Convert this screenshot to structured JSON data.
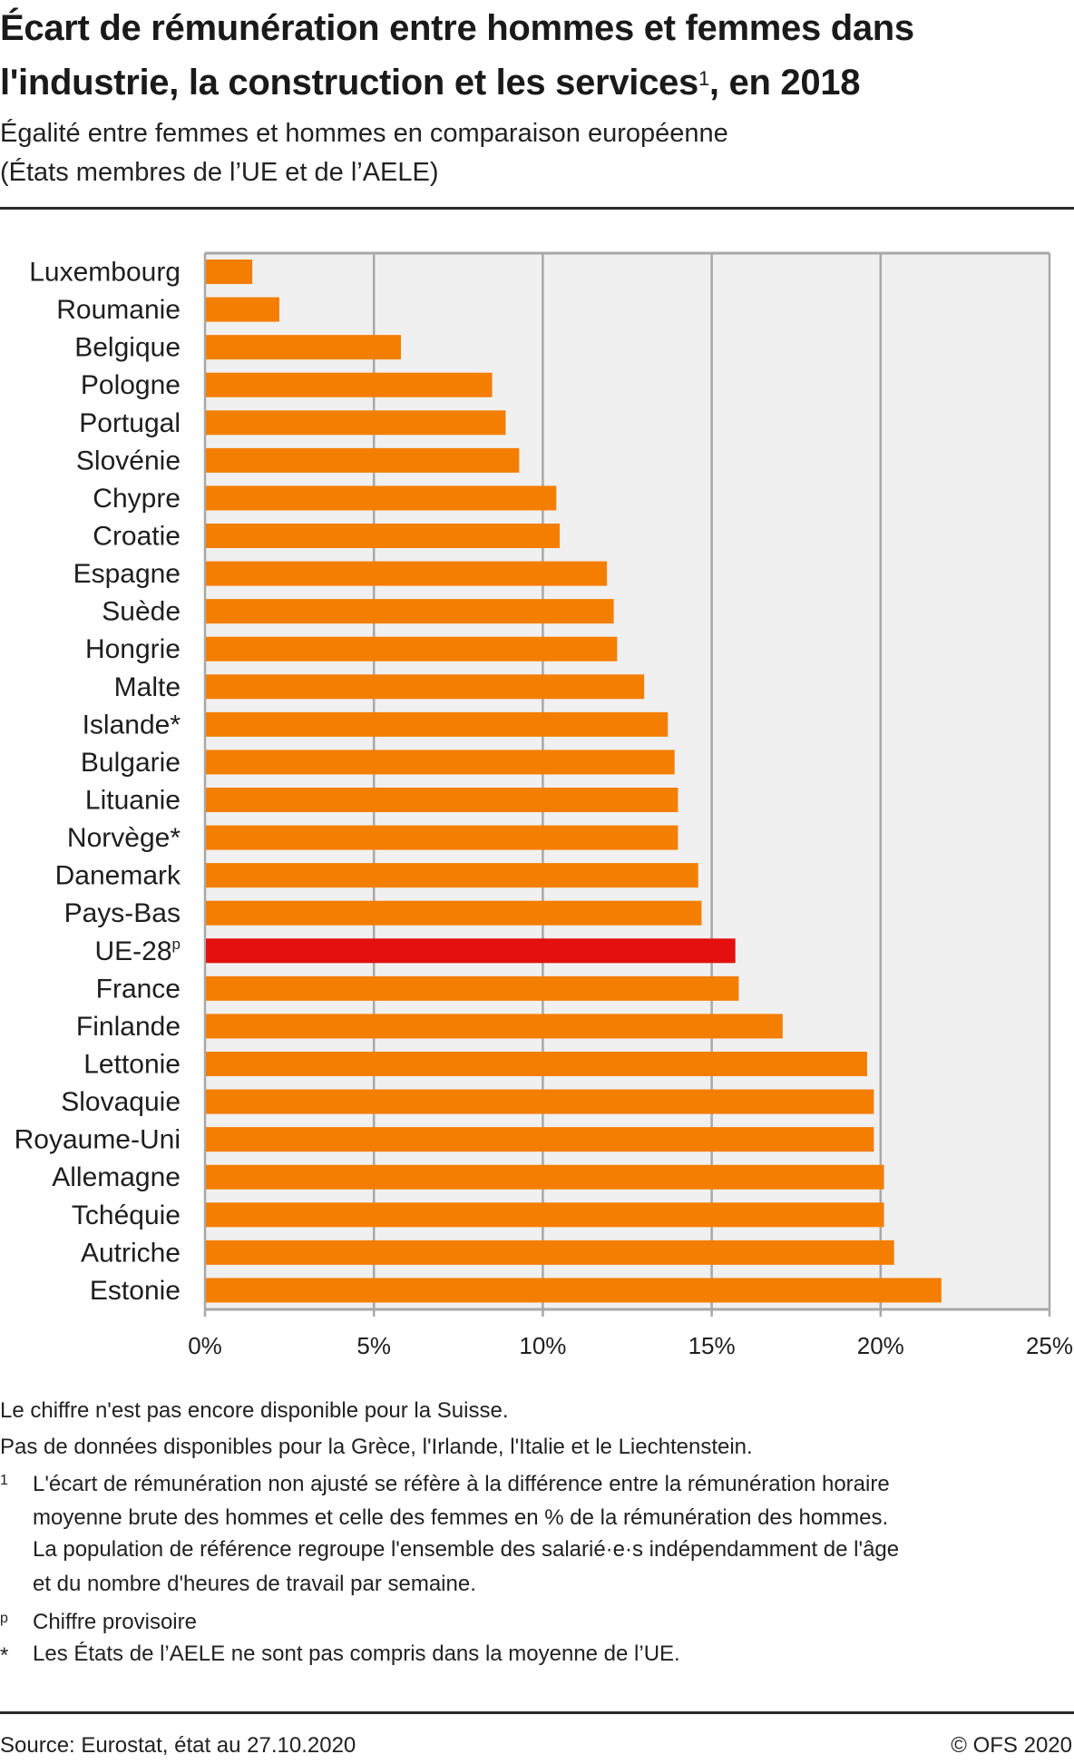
{
  "header": {
    "title_line1": "Écart de rémunération entre hommes et femmes dans",
    "title_line2": "l'industrie, la construction et les services",
    "title_sup": "1",
    "title_line2_end": ", en 2018",
    "subtitle_line1": "Égalité entre femmes et hommes en comparaison européenne",
    "subtitle_line2": "(États membres de l’UE et de l’AELE)"
  },
  "chart_data": {
    "type": "bar",
    "orientation": "horizontal",
    "title": "Écart de rémunération entre hommes et femmes dans l'industrie, la construction et les services, en 2018",
    "subtitle": "Égalité entre femmes et hommes en comparaison européenne (États membres de l’UE et de l’AELE)",
    "xlabel": "",
    "ylabel": "",
    "unit": "%",
    "xlim": [
      0,
      25
    ],
    "ticks": [
      0,
      5,
      10,
      15,
      20,
      25
    ],
    "tick_labels": [
      "0%",
      "5%",
      "10%",
      "15%",
      "20%",
      "25%"
    ],
    "grid": true,
    "legend": "none",
    "colors": {
      "default": "#F47E00",
      "highlight": "#E3100F",
      "plot_bg": "#F0F0F0",
      "grid": "#A8A8A8"
    },
    "highlight_category": "UE-28",
    "categories": [
      "Luxembourg",
      "Roumanie",
      "Belgique",
      "Pologne",
      "Portugal",
      "Slovénie",
      "Chypre",
      "Croatie",
      "Espagne",
      "Suède",
      "Hongrie",
      "Malte",
      "Islande*",
      "Bulgarie",
      "Lituanie",
      "Norvège*",
      "Danemark",
      "Pays-Bas",
      "UE-28",
      "France",
      "Finlande",
      "Lettonie",
      "Slovaquie",
      "Royaume-Uni",
      "Allemagne",
      "Tchéquie",
      "Autriche",
      "Estonie"
    ],
    "category_superscripts": {
      "UE-28": "p"
    },
    "values": [
      1.4,
      2.2,
      5.8,
      8.5,
      8.9,
      9.3,
      10.4,
      10.5,
      11.9,
      12.1,
      12.2,
      13.0,
      13.7,
      13.9,
      14.0,
      14.0,
      14.6,
      14.7,
      15.7,
      15.8,
      17.1,
      19.6,
      19.8,
      19.8,
      20.1,
      20.1,
      20.4,
      21.8
    ]
  },
  "notes": {
    "line1": "Le chiffre n'est pas encore disponible pour la Suisse.",
    "line2": "Pas de données disponibles pour la Grèce, l'Irlande, l'Italie et le Liechtenstein.",
    "fn1_mark": "1",
    "fn1_lines": [
      "L'écart de rémunération non ajusté se réfère à la différence entre la rémunération horaire",
      "moyenne brute des hommes et celle des femmes en % de la rémunération des hommes.",
      "La population de référence regroupe l'ensemble des salarié·e·s indépendamment de l'âge",
      "et du nombre d'heures de travail par semaine."
    ],
    "fnp_mark": "p",
    "fnp_text": "Chiffre provisoire",
    "fnstar_mark": "*",
    "fnstar_text": "Les États de l’AELE ne sont pas compris dans la moyenne de l’UE."
  },
  "footer": {
    "source": "Source: Eurostat, état au 27.10.2020",
    "copyright": "© OFS 2020"
  }
}
